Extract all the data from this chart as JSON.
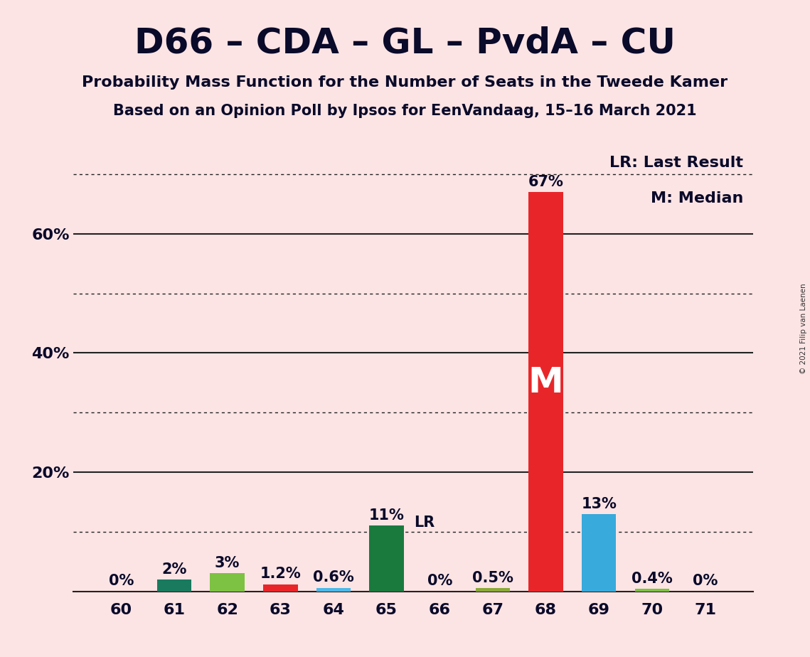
{
  "title": "D66 – CDA – GL – PvdA – CU",
  "subtitle1": "Probability Mass Function for the Number of Seats in the Tweede Kamer",
  "subtitle2": "Based on an Opinion Poll by Ipsos for EenVandaag, 15–16 March 2021",
  "copyright": "© 2021 Filip van Laenen",
  "categories": [
    60,
    61,
    62,
    63,
    64,
    65,
    66,
    67,
    68,
    69,
    70,
    71
  ],
  "values": [
    0.0,
    2.0,
    3.0,
    1.2,
    0.6,
    11.0,
    0.0,
    0.5,
    67.0,
    13.0,
    0.4,
    0.0
  ],
  "labels": [
    "0%",
    "2%",
    "3%",
    "1.2%",
    "0.6%",
    "11%",
    "0%",
    "0.5%",
    "67%",
    "13%",
    "0.4%",
    "0%"
  ],
  "bar_colors": [
    "#f5c6c6",
    "#1a7a5e",
    "#7dc242",
    "#e8262a",
    "#4db8e8",
    "#1a7a3e",
    "#f5c6c6",
    "#8aaa3a",
    "#e8262a",
    "#38aadc",
    "#7dc242",
    "#f5c6c6"
  ],
  "lr_bar_index": 5,
  "median_bar_index": 8,
  "background_color": "#fce4e4",
  "ylim": [
    0,
    75
  ],
  "dotted_ticks": [
    10,
    30,
    50,
    70
  ],
  "solid_ticks": [
    20,
    40,
    60
  ],
  "legend_text1": "LR: Last Result",
  "legend_text2": "M: Median",
  "lr_label": "LR",
  "m_label": "M",
  "title_fontsize": 36,
  "subtitle_fontsize": 16,
  "bar_label_fontsize": 15,
  "tick_fontsize": 16,
  "legend_fontsize": 16,
  "m_fontsize": 36
}
